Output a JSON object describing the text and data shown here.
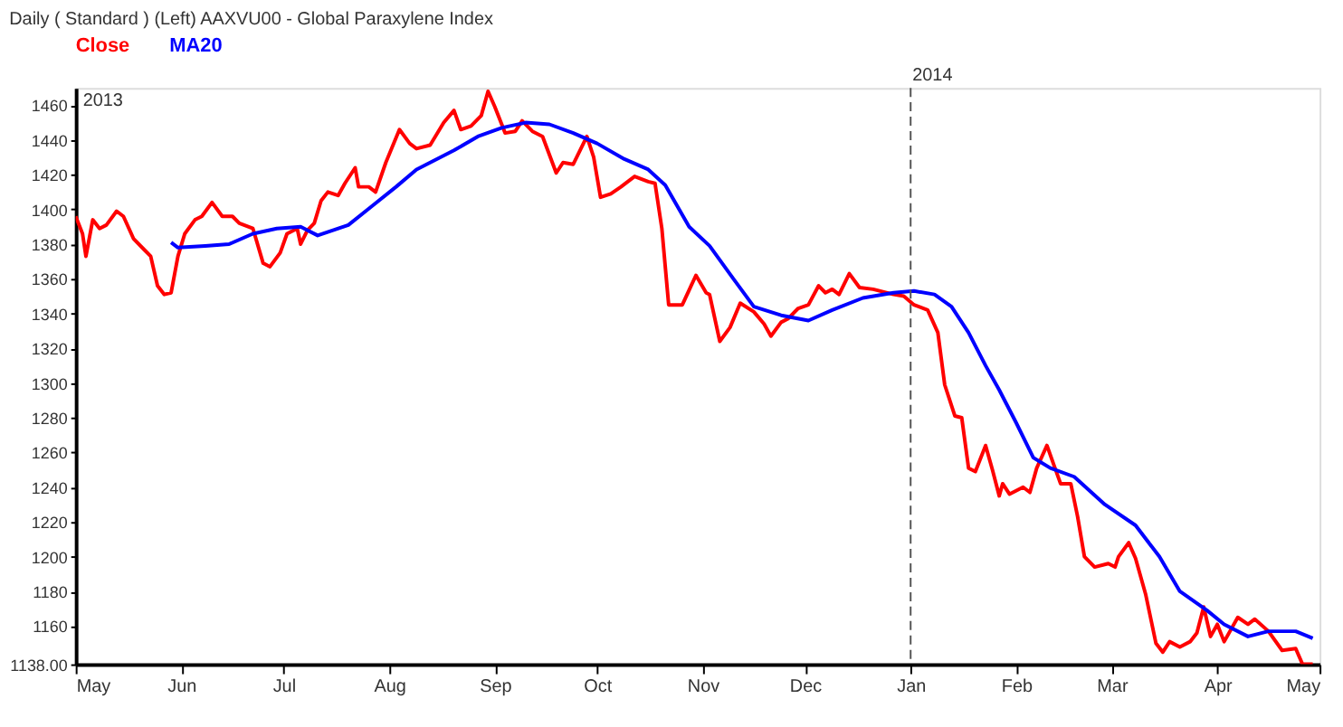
{
  "chart_data": {
    "type": "line",
    "title": "Daily ( Standard )  (Left)   AAXVU00 - Global Paraxylene Index",
    "annotations": [
      "2013"
    ],
    "legend": "top",
    "grid": false,
    "marker": "none",
    "line_style": "solid",
    "xlim": [
      "2013-05-01",
      "2014-05-01"
    ],
    "xticks": [
      {
        "value": "2013-05-01",
        "label": "May"
      },
      {
        "value": "2013-06-01",
        "label": "Jun"
      },
      {
        "value": "2013-07-01",
        "label": "Jul"
      },
      {
        "value": "2013-08-01",
        "label": "Aug"
      },
      {
        "value": "2013-09-01",
        "label": "Sep"
      },
      {
        "value": "2013-10-01",
        "label": "Oct"
      },
      {
        "value": "2013-11-01",
        "label": "Nov"
      },
      {
        "value": "2013-12-01",
        "label": "Dec"
      },
      {
        "value": "2014-01-01",
        "label": "Jan"
      },
      {
        "value": "2014-02-01",
        "label": "Feb"
      },
      {
        "value": "2014-03-01",
        "label": "Mar"
      },
      {
        "value": "2014-04-01",
        "label": "Apr"
      },
      {
        "value": "2014-05-01",
        "label": "May"
      }
    ],
    "ylim": [
      1138,
      1470
    ],
    "yticks": [
      {
        "value": 1138,
        "label": "1138.00"
      },
      1160,
      1180,
      1200,
      1220,
      1240,
      1260,
      1280,
      1300,
      1320,
      1340,
      1360,
      1380,
      1400,
      1420,
      1440,
      1460
    ],
    "ref_lines": [
      {
        "axis": "x",
        "value": "2014-01-01",
        "label": "2014",
        "color": "#555555",
        "line_style": "dashed"
      }
    ],
    "series": [
      {
        "name": "Close",
        "color": "#ff0000",
        "x": [
          "2013-05-01",
          "2013-05-03",
          "2013-05-04",
          "2013-05-06",
          "2013-05-08",
          "2013-05-10",
          "2013-05-13",
          "2013-05-15",
          "2013-05-18",
          "2013-05-21",
          "2013-05-23",
          "2013-05-25",
          "2013-05-27",
          "2013-05-29",
          "2013-05-31",
          "2013-06-02",
          "2013-06-05",
          "2013-06-07",
          "2013-06-10",
          "2013-06-13",
          "2013-06-16",
          "2013-06-18",
          "2013-06-22",
          "2013-06-25",
          "2013-06-27",
          "2013-06-30",
          "2013-07-02",
          "2013-07-05",
          "2013-07-06",
          "2013-07-08",
          "2013-07-10",
          "2013-07-12",
          "2013-07-14",
          "2013-07-17",
          "2013-07-19",
          "2013-07-22",
          "2013-07-23",
          "2013-07-26",
          "2013-07-28",
          "2013-07-31",
          "2013-08-04",
          "2013-08-07",
          "2013-08-09",
          "2013-08-13",
          "2013-08-17",
          "2013-08-20",
          "2013-08-22",
          "2013-08-25",
          "2013-08-28",
          "2013-08-30",
          "2013-09-01",
          "2013-09-04",
          "2013-09-07",
          "2013-09-09",
          "2013-09-12",
          "2013-09-15",
          "2013-09-19",
          "2013-09-21",
          "2013-09-24",
          "2013-09-28",
          "2013-09-30",
          "2013-10-02",
          "2013-10-05",
          "2013-10-08",
          "2013-10-12",
          "2013-10-16",
          "2013-10-18",
          "2013-10-20",
          "2013-10-22",
          "2013-10-26",
          "2013-10-30",
          "2013-11-02",
          "2013-11-03",
          "2013-11-06",
          "2013-11-09",
          "2013-11-12",
          "2013-11-16",
          "2013-11-19",
          "2013-11-21",
          "2013-11-24",
          "2013-11-26",
          "2013-11-29",
          "2013-12-02",
          "2013-12-05",
          "2013-12-07",
          "2013-12-09",
          "2013-12-11",
          "2013-12-14",
          "2013-12-17",
          "2013-12-21",
          "2013-12-27",
          "2013-12-30",
          "2014-01-02",
          "2014-01-06",
          "2014-01-09",
          "2014-01-11",
          "2014-01-14",
          "2014-01-16",
          "2014-01-18",
          "2014-01-20",
          "2014-01-23",
          "2014-01-25",
          "2014-01-27",
          "2014-01-28",
          "2014-01-30",
          "2014-02-03",
          "2014-02-05",
          "2014-02-07",
          "2014-02-10",
          "2014-02-12",
          "2014-02-14",
          "2014-02-17",
          "2014-02-19",
          "2014-02-21",
          "2014-02-24",
          "2014-02-28",
          "2014-03-02",
          "2014-03-03",
          "2014-03-06",
          "2014-03-08",
          "2014-03-11",
          "2014-03-14",
          "2014-03-16",
          "2014-03-18",
          "2014-03-21",
          "2014-03-24",
          "2014-03-26",
          "2014-03-28",
          "2014-03-30",
          "2014-04-01",
          "2014-04-03",
          "2014-04-07",
          "2014-04-10",
          "2014-04-12",
          "2014-04-16",
          "2014-04-20",
          "2014-04-24",
          "2014-04-26",
          "2014-04-29"
        ],
        "values": [
          1396,
          1386,
          1373,
          1394,
          1389,
          1391,
          1399,
          1396,
          1383,
          1377,
          1373,
          1356,
          1351,
          1352,
          1373,
          1386,
          1394,
          1396,
          1404,
          1396,
          1396,
          1392,
          1389,
          1369,
          1367,
          1375,
          1386,
          1389,
          1380,
          1388,
          1392,
          1405,
          1410,
          1408,
          1415,
          1424,
          1413,
          1413,
          1410,
          1427,
          1446,
          1438,
          1435,
          1437,
          1450,
          1457,
          1446,
          1448,
          1454,
          1468,
          1459,
          1444,
          1445,
          1451,
          1445,
          1442,
          1421,
          1427,
          1426,
          1442,
          1430,
          1407,
          1409,
          1413,
          1419,
          1416,
          1415,
          1389,
          1345,
          1345,
          1362,
          1352,
          1351,
          1324,
          1332,
          1346,
          1341,
          1334,
          1327,
          1335,
          1337,
          1343,
          1345,
          1356,
          1352,
          1354,
          1351,
          1363,
          1355,
          1354,
          1351,
          1350,
          1345,
          1342,
          1329,
          1299,
          1281,
          1280,
          1251,
          1249,
          1264,
          1250,
          1235,
          1242,
          1236,
          1240,
          1237,
          1251,
          1264,
          1253,
          1242,
          1242,
          1223,
          1200,
          1194,
          1196,
          1194,
          1200,
          1208,
          1199,
          1178,
          1150,
          1145,
          1151,
          1148,
          1151,
          1156,
          1171,
          1154,
          1161,
          1151,
          1165,
          1161,
          1164,
          1157,
          1146,
          1147,
          1138,
          1138
        ]
      },
      {
        "name": "MA20",
        "color": "#0000ff",
        "x": [
          "2013-05-29",
          "2013-05-31",
          "2013-06-08",
          "2013-06-15",
          "2013-06-22",
          "2013-06-29",
          "2013-07-06",
          "2013-07-11",
          "2013-07-20",
          "2013-07-27",
          "2013-08-03",
          "2013-08-09",
          "2013-08-20",
          "2013-08-27",
          "2013-09-03",
          "2013-09-10",
          "2013-09-17",
          "2013-09-24",
          "2013-10-01",
          "2013-10-09",
          "2013-10-16",
          "2013-10-21",
          "2013-10-28",
          "2013-11-03",
          "2013-11-10",
          "2013-11-16",
          "2013-11-24",
          "2013-12-02",
          "2013-12-09",
          "2013-12-18",
          "2013-12-27",
          "2014-01-02",
          "2014-01-08",
          "2014-01-13",
          "2014-01-18",
          "2014-01-23",
          "2014-01-27",
          "2014-02-01",
          "2014-02-06",
          "2014-02-11",
          "2014-02-18",
          "2014-02-27",
          "2014-03-08",
          "2014-03-15",
          "2014-03-21",
          "2014-03-29",
          "2014-04-03",
          "2014-04-10",
          "2014-04-16",
          "2014-04-24",
          "2014-04-29"
        ],
        "values": [
          1381,
          1378,
          1379,
          1380,
          1386,
          1389,
          1390,
          1385,
          1391,
          1402,
          1413,
          1423,
          1434,
          1442,
          1447,
          1450,
          1449,
          1444,
          1438,
          1429,
          1423,
          1414,
          1390,
          1379,
          1360,
          1344,
          1339,
          1336,
          1342,
          1349,
          1352,
          1353,
          1351,
          1344,
          1329,
          1310,
          1296,
          1277,
          1257,
          1251,
          1246,
          1230,
          1218,
          1200,
          1180,
          1169,
          1161,
          1154,
          1157,
          1157,
          1153
        ]
      }
    ]
  }
}
